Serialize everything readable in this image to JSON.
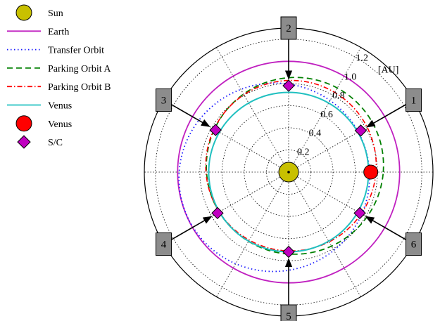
{
  "chart_data": {
    "type": "polar",
    "unit_label": "[AU]",
    "radial_ticks": [
      "0.2",
      "0.4",
      "0.6",
      "0.8",
      "1.0",
      "1.2"
    ],
    "radial_tick_values": [
      0.2,
      0.4,
      0.6,
      0.8,
      1.0,
      1.2
    ],
    "rmax": 1.3,
    "grid": true,
    "legend_placement": "top-left",
    "legend": [
      {
        "label": "Sun",
        "style": "circle-marker",
        "color": "#c8c000"
      },
      {
        "label": "Earth",
        "style": "solid",
        "color": "#c020c0"
      },
      {
        "label": "Transfer Orbit",
        "style": "dotted",
        "color": "#1a1aff"
      },
      {
        "label": "Parking Orbit A",
        "style": "dashed",
        "color": "#008000"
      },
      {
        "label": "Parking Orbit B",
        "style": "dashdot",
        "color": "#ff0000"
      },
      {
        "label": "Venus",
        "style": "solid",
        "color": "#20c0c0"
      },
      {
        "label": "Venus",
        "style": "circle-marker",
        "color": "#ff0000"
      },
      {
        "label": "S/C",
        "style": "diamond-marker",
        "color": "#c000c0"
      }
    ],
    "sun": {
      "r": 0,
      "theta_deg": 0
    },
    "earth_orbit": {
      "radius": 1.0
    },
    "venus_orbit": {
      "radius": 0.72
    },
    "parking_orbit_a": {
      "a": 0.8,
      "e": 0.1,
      "periapsis_deg": 225
    },
    "parking_orbit_b": {
      "a": 0.77,
      "e": 0.08,
      "periapsis_deg": 250
    },
    "transfer_orbit": {
      "a": 0.86,
      "e": 0.16,
      "periapsis_deg": 20,
      "start_deg": 0,
      "end_deg": 180
    },
    "venus_position": {
      "r": 0.74,
      "theta_deg": 0
    },
    "spacecraft": [
      {
        "label": "1",
        "r": 0.75,
        "theta_deg": 30
      },
      {
        "label": "2",
        "r": 0.78,
        "theta_deg": 90
      },
      {
        "label": "3",
        "r": 0.76,
        "theta_deg": 150
      },
      {
        "label": "4",
        "r": 0.74,
        "theta_deg": 210
      },
      {
        "label": "5",
        "r": 0.72,
        "theta_deg": 270
      },
      {
        "label": "6",
        "r": 0.74,
        "theta_deg": 330
      }
    ]
  }
}
